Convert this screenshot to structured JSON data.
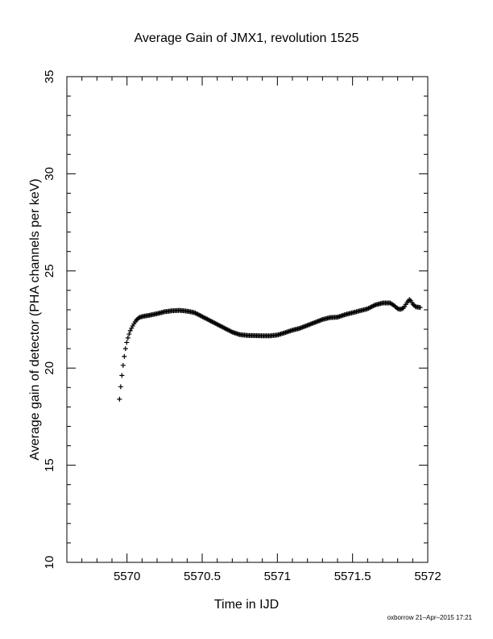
{
  "chart_data": {
    "type": "scatter",
    "title": "Average Gain of JMX1, revolution 1525",
    "xlabel": "Time in IJD",
    "ylabel": "Average gain of detector (PHA channels per keV)",
    "xlim": [
      5569.6,
      5572
    ],
    "ylim": [
      10,
      35
    ],
    "x_ticks": [
      5570,
      5570.5,
      5571,
      5571.5,
      5572
    ],
    "x_tick_labels": [
      "5570",
      "5570.5",
      "5571",
      "5571.5",
      "5572"
    ],
    "y_ticks": [
      10,
      15,
      20,
      25,
      30,
      35
    ],
    "y_tick_labels": [
      "10",
      "15",
      "20",
      "25",
      "30",
      "35"
    ],
    "marker": "plus",
    "grid": false,
    "curve_points": [
      [
        5569.95,
        18.4
      ],
      [
        5569.96,
        19.2
      ],
      [
        5569.97,
        19.9
      ],
      [
        5569.98,
        20.5
      ],
      [
        5569.99,
        21.0
      ],
      [
        5570.0,
        21.4
      ],
      [
        5570.02,
        21.9
      ],
      [
        5570.04,
        22.2
      ],
      [
        5570.06,
        22.45
      ],
      [
        5570.08,
        22.6
      ],
      [
        5570.1,
        22.65
      ],
      [
        5570.15,
        22.72
      ],
      [
        5570.2,
        22.8
      ],
      [
        5570.25,
        22.9
      ],
      [
        5570.3,
        22.95
      ],
      [
        5570.35,
        22.97
      ],
      [
        5570.4,
        22.93
      ],
      [
        5570.45,
        22.85
      ],
      [
        5570.5,
        22.65
      ],
      [
        5570.55,
        22.45
      ],
      [
        5570.6,
        22.25
      ],
      [
        5570.65,
        22.05
      ],
      [
        5570.7,
        21.85
      ],
      [
        5570.75,
        21.72
      ],
      [
        5570.8,
        21.68
      ],
      [
        5570.85,
        21.67
      ],
      [
        5570.9,
        21.66
      ],
      [
        5570.95,
        21.66
      ],
      [
        5571.0,
        21.7
      ],
      [
        5571.05,
        21.82
      ],
      [
        5571.1,
        21.95
      ],
      [
        5571.15,
        22.05
      ],
      [
        5571.2,
        22.2
      ],
      [
        5571.25,
        22.35
      ],
      [
        5571.3,
        22.5
      ],
      [
        5571.35,
        22.6
      ],
      [
        5571.4,
        22.62
      ],
      [
        5571.45,
        22.75
      ],
      [
        5571.5,
        22.85
      ],
      [
        5571.55,
        22.95
      ],
      [
        5571.6,
        23.05
      ],
      [
        5571.65,
        23.25
      ],
      [
        5571.7,
        23.35
      ],
      [
        5571.75,
        23.35
      ],
      [
        5571.78,
        23.2
      ],
      [
        5571.8,
        23.05
      ],
      [
        5571.82,
        23.02
      ],
      [
        5571.84,
        23.1
      ],
      [
        5571.86,
        23.35
      ],
      [
        5571.88,
        23.55
      ],
      [
        5571.9,
        23.3
      ],
      [
        5571.92,
        23.15
      ],
      [
        5571.95,
        23.12
      ]
    ]
  },
  "footer": {
    "credit": "oxborrow 21–Apr–2015 17:21"
  }
}
